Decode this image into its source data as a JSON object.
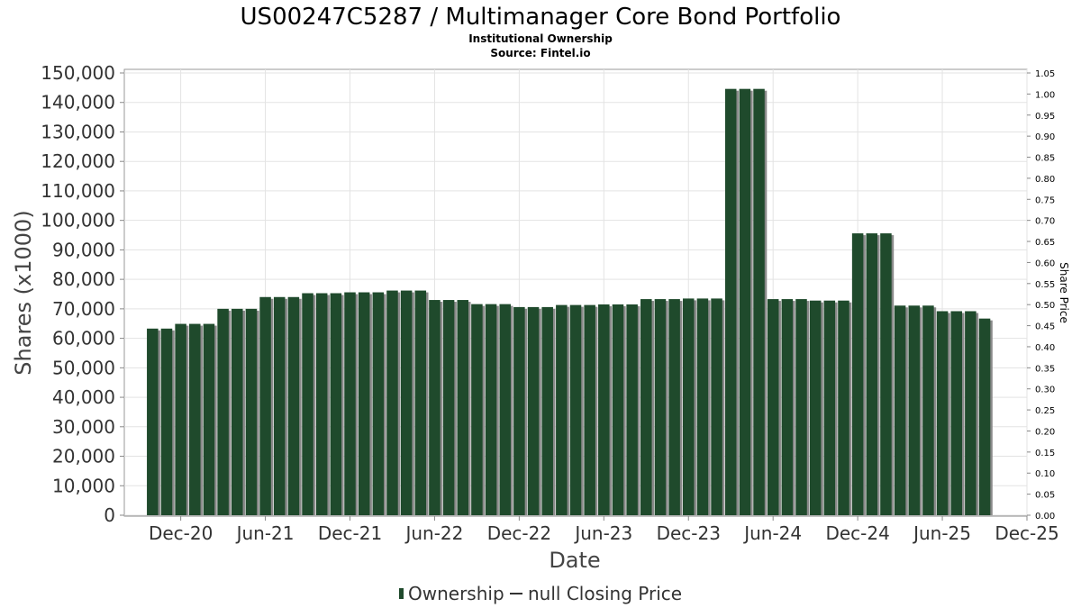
{
  "chart_data": {
    "type": "bar",
    "title": "US00247C5287 / Multimanager Core Bond Portfolio",
    "subtitle_lines": [
      "Institutional Ownership",
      "Source: Fintel.io"
    ],
    "xlabel": "Date",
    "ylabel": "Shares (x1000)",
    "y2label": "Share Price",
    "ylim": [
      0,
      150000
    ],
    "y_ticks": [
      "0",
      "10,000",
      "20,000",
      "30,000",
      "40,000",
      "50,000",
      "60,000",
      "70,000",
      "80,000",
      "90,000",
      "100,000",
      "110,000",
      "120,000",
      "130,000",
      "140,000",
      "150,000"
    ],
    "y2lim": [
      0,
      1.05
    ],
    "y2_ticks": [
      "0.00",
      "0.05",
      "0.10",
      "0.15",
      "0.20",
      "0.25",
      "0.30",
      "0.35",
      "0.40",
      "0.45",
      "0.50",
      "0.55",
      "0.60",
      "0.65",
      "0.70",
      "0.75",
      "0.80",
      "0.85",
      "0.90",
      "0.95",
      "1.00",
      "1.05"
    ],
    "x_range_months": [
      "2020-08",
      "2025-12"
    ],
    "x_ticks": [
      {
        "label": "Dec-20",
        "date": "2020-12"
      },
      {
        "label": "Jun-21",
        "date": "2021-06"
      },
      {
        "label": "Dec-21",
        "date": "2021-12"
      },
      {
        "label": "Jun-22",
        "date": "2022-06"
      },
      {
        "label": "Dec-22",
        "date": "2022-12"
      },
      {
        "label": "Jun-23",
        "date": "2023-06"
      },
      {
        "label": "Dec-23",
        "date": "2023-12"
      },
      {
        "label": "Jun-24",
        "date": "2024-06"
      },
      {
        "label": "Dec-24",
        "date": "2024-12"
      },
      {
        "label": "Jun-25",
        "date": "2025-06"
      },
      {
        "label": "Dec-25",
        "date": "2025-12"
      }
    ],
    "grid": true,
    "legend_position": "bottom",
    "legend": [
      {
        "label": "Ownership",
        "marker": "bar"
      },
      {
        "label": "null Closing Price",
        "marker": "line"
      }
    ],
    "series": [
      {
        "name": "Ownership",
        "color": "#1f4a2c",
        "shadow_color": "#8a8a8a",
        "x": [
          "2020-10",
          "2020-11",
          "2020-12",
          "2021-01",
          "2021-02",
          "2021-03",
          "2021-04",
          "2021-05",
          "2021-06",
          "2021-07",
          "2021-08",
          "2021-09",
          "2021-10",
          "2021-11",
          "2021-12",
          "2022-01",
          "2022-02",
          "2022-03",
          "2022-04",
          "2022-05",
          "2022-06",
          "2022-07",
          "2022-08",
          "2022-09",
          "2022-10",
          "2022-11",
          "2022-12",
          "2023-01",
          "2023-02",
          "2023-03",
          "2023-04",
          "2023-05",
          "2023-06",
          "2023-07",
          "2023-08",
          "2023-09",
          "2023-10",
          "2023-11",
          "2023-12",
          "2024-01",
          "2024-02",
          "2024-03",
          "2024-04",
          "2024-05",
          "2024-06",
          "2024-07",
          "2024-08",
          "2024-09",
          "2024-10",
          "2024-11",
          "2024-12",
          "2025-01",
          "2025-02",
          "2025-03",
          "2025-04",
          "2025-05",
          "2025-06",
          "2025-07",
          "2025-08",
          "2025-09"
        ],
        "values": [
          63300,
          63300,
          64900,
          64900,
          64900,
          70000,
          70000,
          70000,
          74000,
          74000,
          74000,
          75300,
          75300,
          75300,
          75600,
          75600,
          75600,
          76200,
          76200,
          76200,
          73000,
          73000,
          73000,
          71600,
          71600,
          71600,
          70600,
          70600,
          70600,
          71300,
          71300,
          71300,
          71500,
          71500,
          71500,
          73300,
          73300,
          73300,
          73500,
          73500,
          73500,
          144600,
          144600,
          144600,
          73300,
          73300,
          73300,
          72800,
          72800,
          72800,
          95600,
          95600,
          95600,
          71100,
          71100,
          71100,
          69200,
          69200,
          69200,
          66700
        ]
      },
      {
        "name": "null Closing Price",
        "color": "#000000",
        "values": []
      }
    ]
  }
}
